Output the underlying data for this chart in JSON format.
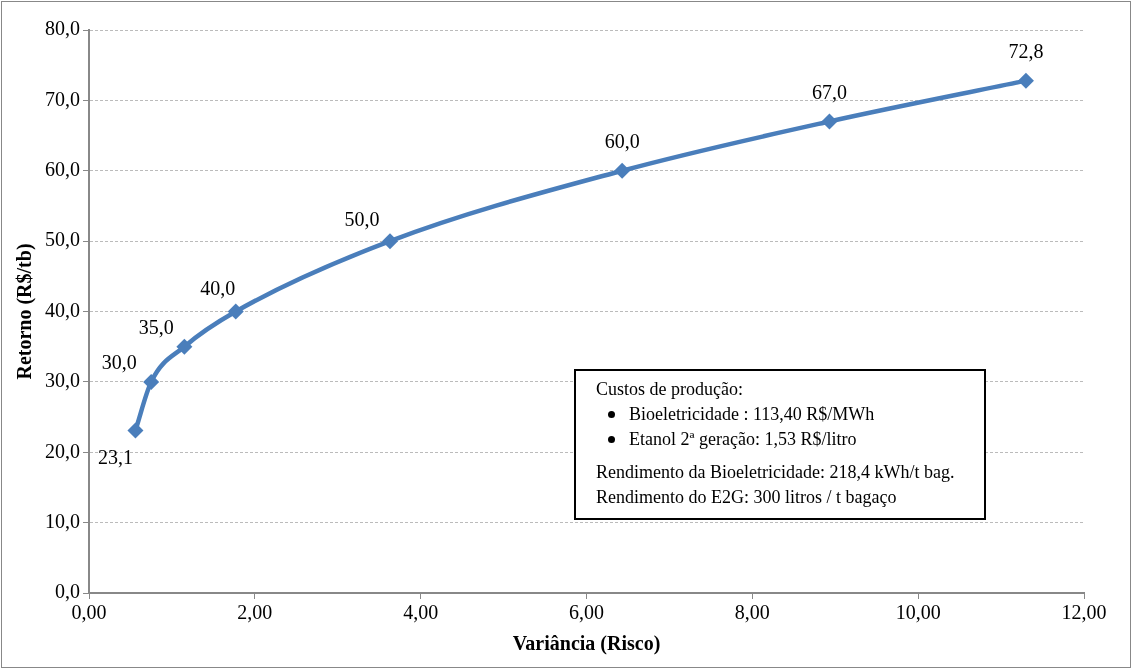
{
  "chart_data": {
    "type": "line",
    "xlabel": "Variância (Risco)",
    "ylabel": "Retorno (R$/tb)",
    "x": [
      0.56,
      0.75,
      1.15,
      1.77,
      3.63,
      6.43,
      8.93,
      11.3
    ],
    "series": [
      {
        "color": "#4a7ebb",
        "values": [
          23.1,
          30.0,
          35.0,
          40.0,
          50.0,
          60.0,
          67.0,
          72.8
        ],
        "value_labels": [
          "23,1",
          "30,0",
          "35,0",
          "40,0",
          "50,0",
          "60,0",
          "67,0",
          "72,8"
        ]
      }
    ],
    "xlim": [
      0,
      12
    ],
    "xticks": [
      {
        "value": 0,
        "label": "0,00"
      },
      {
        "value": 2,
        "label": "2,00"
      },
      {
        "value": 4,
        "label": "4,00"
      },
      {
        "value": 6,
        "label": "6,00"
      },
      {
        "value": 8,
        "label": "8,00"
      },
      {
        "value": 10,
        "label": "10,00"
      },
      {
        "value": 12,
        "label": "12,00"
      }
    ],
    "ylim": [
      0,
      80
    ],
    "yticks": [
      {
        "value": 0,
        "label": "0,0"
      },
      {
        "value": 10,
        "label": "10,0"
      },
      {
        "value": 20,
        "label": "20,0"
      },
      {
        "value": 30,
        "label": "30,0"
      },
      {
        "value": 40,
        "label": "40,0"
      },
      {
        "value": 50,
        "label": "50,0"
      },
      {
        "value": 60,
        "label": "60,0"
      },
      {
        "value": 70,
        "label": "70,0"
      },
      {
        "value": 80,
        "label": "80,0"
      }
    ],
    "grid": "y",
    "marker": "diamond",
    "line_style": "solid",
    "legend": false,
    "annotations": [
      "Custos de produção:",
      "Bioeletricidade : 113,40 R$/MWh",
      "Etanol 2ª geração: 1,53 R$/litro",
      "Rendimento da Bioeletricidade: 218,4 kWh/t bag.",
      "Rendimento do E2G: 300 litros / t bagaço"
    ]
  }
}
